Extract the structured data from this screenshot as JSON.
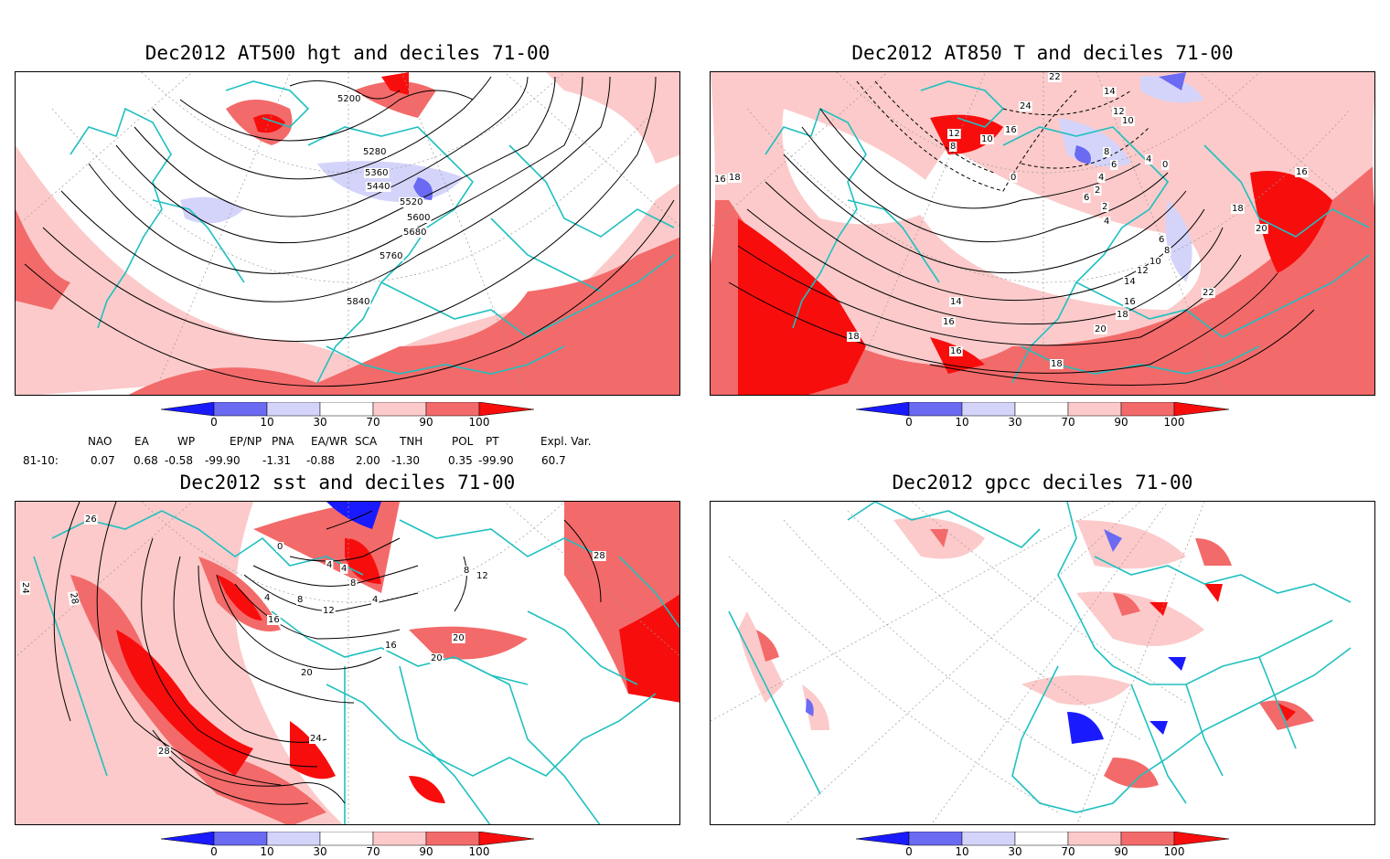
{
  "panels": {
    "p1": {
      "title": "Dec2012 AT500 hgt and deciles 71-00",
      "contour_labels": [
        "5200",
        "5280",
        "5360",
        "5440",
        "5520",
        "5600",
        "5680",
        "5760",
        "5840"
      ]
    },
    "p2": {
      "title": "Dec2012 AT850 T and deciles 71-00",
      "contour_labels": [
        "22",
        "14",
        "24",
        "12",
        "10",
        "12",
        "8",
        "16",
        "10",
        "8",
        "6",
        "4",
        "0",
        "2",
        "6",
        "4",
        "0",
        "2",
        "4",
        "16",
        "18",
        "16",
        "18",
        "20",
        "6",
        "8",
        "10",
        "12",
        "14",
        "16",
        "18",
        "22",
        "20",
        "16",
        "18",
        "14",
        "16",
        "18"
      ]
    },
    "p3": {
      "title": "Dec2012 sst and deciles 71-00",
      "contour_labels": [
        "26",
        "24",
        "28",
        "0",
        "4",
        "4",
        "4",
        "8",
        "4",
        "8",
        "12",
        "16",
        "8",
        "12",
        "16",
        "20",
        "20",
        "20",
        "24",
        "28",
        "28"
      ]
    },
    "p4": {
      "title": "Dec2012 gpcc deciles 71-00",
      "contour_labels": []
    }
  },
  "colorbar": {
    "labels": [
      "0",
      "10",
      "30",
      "70",
      "90",
      "100"
    ],
    "colors": {
      "dark_blue": "#1a1aff",
      "mid_blue": "#6a6af2",
      "light_blue": "#d4d4fb",
      "white": "#ffffff",
      "light_red": "#fccaca",
      "mid_red": "#f36a6a",
      "dark_red": "#f80d0d"
    }
  },
  "indices": {
    "headers": [
      "NAO",
      "EA",
      "WP",
      "EP/NP",
      "PNA",
      "EA/WR",
      "SCA",
      "TNH",
      "POL",
      "PT",
      "Expl. Var."
    ],
    "row_label": "81-10:",
    "values": [
      "0.07",
      "0.68",
      "-0.58",
      "-99.90",
      "-1.31",
      "-0.88",
      "2.00",
      "-1.30",
      "0.35",
      "-99.90",
      "60.7"
    ]
  },
  "map_colors": {
    "coast": "#20c0c0",
    "grid": "#9a9a9a",
    "contour": "#000000"
  }
}
